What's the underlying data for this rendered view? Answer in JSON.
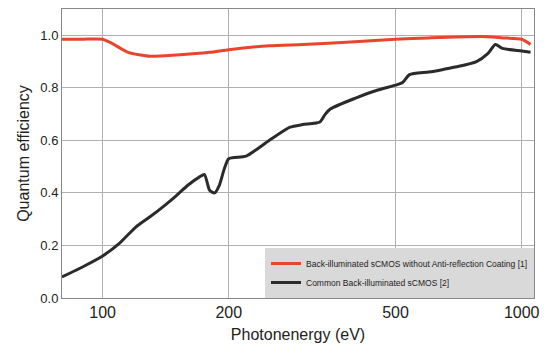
{
  "chart_data": {
    "type": "line",
    "x_label": "Photonenergy (eV)",
    "y_label": "Quantum efficiency",
    "log": "x",
    "grid": true,
    "legend": "lower right",
    "xlim": [
      80,
      1070
    ],
    "xticks": [
      100,
      200,
      500,
      1000
    ],
    "ylim": [
      0,
      1.1
    ],
    "yticks": [
      {
        "value": 0,
        "label": "0.0"
      },
      0.2,
      0.4,
      0.6,
      0.8,
      {
        "value": 1,
        "label": "1.0"
      }
    ],
    "series": [
      {
        "name": "Back-illuminated sCMOS without Anti-reflection Coating [1]",
        "color": "#e8452c",
        "x": [
          80,
          90,
          100,
          105,
          115,
          130,
          150,
          180,
          200,
          250,
          300,
          400,
          500,
          600,
          800,
          900,
          1000,
          1050
        ],
        "values": [
          0.985,
          0.985,
          0.985,
          0.97,
          0.935,
          0.92,
          0.925,
          0.935,
          0.945,
          0.96,
          0.965,
          0.975,
          0.985,
          0.99,
          0.995,
          0.99,
          0.985,
          0.965
        ]
      },
      {
        "name": "Common Back-illuminated sCMOS [2]",
        "color": "#2b2b2b",
        "x": [
          80,
          90,
          100,
          110,
          120,
          130,
          140,
          150,
          160,
          170,
          175,
          180,
          185,
          190,
          195,
          200,
          220,
          250,
          280,
          300,
          330,
          340,
          350,
          400,
          450,
          500,
          520,
          540,
          600,
          650,
          700,
          780,
          830,
          865,
          900,
          1000,
          1050
        ],
        "values": [
          0.08,
          0.12,
          0.16,
          0.21,
          0.27,
          0.31,
          0.35,
          0.39,
          0.43,
          0.46,
          0.47,
          0.41,
          0.4,
          0.43,
          0.49,
          0.53,
          0.54,
          0.6,
          0.65,
          0.66,
          0.67,
          0.7,
          0.72,
          0.76,
          0.79,
          0.81,
          0.82,
          0.85,
          0.86,
          0.87,
          0.88,
          0.9,
          0.93,
          0.965,
          0.95,
          0.94,
          0.935
        ]
      }
    ]
  }
}
